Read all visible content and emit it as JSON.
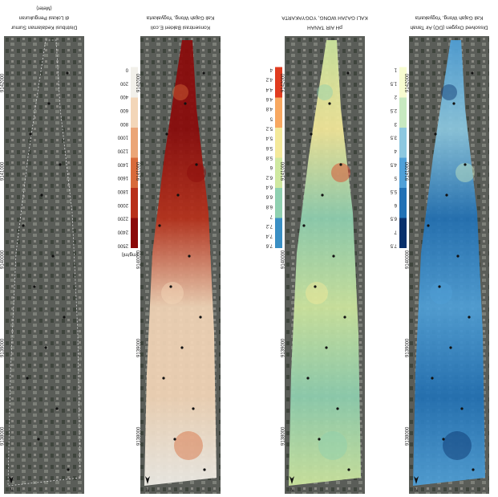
{
  "north": "N",
  "y_coords": [
    "9138000",
    "9139000",
    "9140000",
    "9141000",
    "9142000"
  ],
  "panels": [
    {
      "title": "Dissolved Oxygen (DO) Air Tanah",
      "subtitle": "Kali Gajah Wong, Yogyakarta",
      "legend": [
        "7.5",
        "7",
        "6.5",
        "6",
        "5.5",
        "5",
        "4.5",
        "4",
        "3.5",
        "3",
        "2.5",
        "2",
        "1.5",
        "1"
      ],
      "colormap": [
        "#08306b",
        "#2171b5",
        "#4fa0d8",
        "#8cc8e0",
        "#c7e9c0",
        "#f7fcd0"
      ]
    },
    {
      "title": "pH AIR TANAH",
      "subtitle": "KALI GAJAH WONG, YOGYAKARTA",
      "legend": [
        "7.6",
        "7.4",
        "7.2",
        "7",
        "6.8",
        "6.6",
        "6.4",
        "6.2",
        "6",
        "5.8",
        "5.6",
        "5.4",
        "5.2",
        "5",
        "4.8",
        "4.6",
        "4.4",
        "4.2",
        "4"
      ],
      "colormap": [
        "#3a8fc4",
        "#8fd0b0",
        "#cfe8a0",
        "#f4e99a",
        "#f8a860",
        "#e03c20"
      ]
    },
    {
      "title": "Konsentrasi Bakteri E.coli",
      "subtitle": "Kali Gajah Wong, Yogyakarta",
      "unit": "(mg/ml)",
      "legend": [
        "2500",
        "2400",
        "2200",
        "2000",
        "1800",
        "1600",
        "1400",
        "1200",
        "1000",
        "800",
        "600",
        "400",
        "200",
        "0"
      ],
      "colormap": [
        "#8b0a0a",
        "#b8301a",
        "#d86a3a",
        "#eba577",
        "#f3d6b8",
        "#f2f0ea"
      ]
    },
    {
      "title": "Distribusi Kedalaman Sumur",
      "subtitle": "di Lokasi Pengukuran",
      "unit": "(Meter)"
    }
  ]
}
